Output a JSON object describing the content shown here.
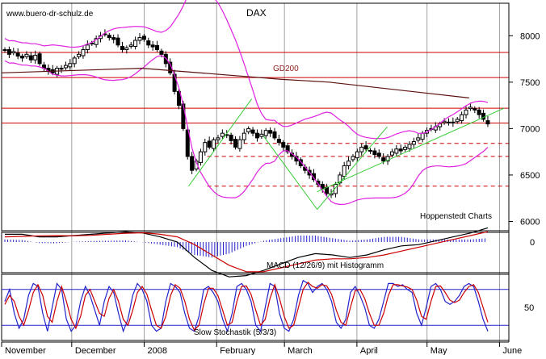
{
  "watermark": "www.buero-dr-schulz.de",
  "colors": {
    "background": "#ffffff",
    "price": "#000000",
    "bollinger": "#e020e0",
    "resistance": "#cc0000",
    "gd200": "#5a1010",
    "channel": "#33cc33",
    "vgrid": "#a0a0a0",
    "macd_line": "#000000",
    "signal_line": "#cc0000",
    "histogram": "#2222cc",
    "stoch_k": "#2222cc",
    "stoch_d": "#cc0000",
    "stoch_levels": "#2222cc"
  },
  "chart_data": [
    {
      "type": "candlestick",
      "title": "DAX",
      "annotations": [
        "GD200",
        "Hoppenstedt Charts"
      ],
      "y_ticks": [
        8000,
        7500,
        7000,
        6500,
        6000
      ],
      "ylim": [
        5900,
        8350
      ],
      "x_ticks": [
        "November",
        "December",
        "2008",
        "February",
        "March",
        "April",
        "May",
        "June"
      ],
      "x_tick_days": [
        0,
        30,
        61,
        92,
        121,
        152,
        182,
        213
      ],
      "xlim": [
        0,
        217
      ],
      "close": [
        7850,
        7800,
        7830,
        7780,
        7760,
        7800,
        7740,
        7790,
        7700,
        7650,
        7620,
        7600,
        7650,
        7640,
        7680,
        7700,
        7760,
        7800,
        7850,
        7900,
        7920,
        7970,
        8000,
        8020,
        7980,
        7960,
        7900,
        7850,
        7870,
        7900,
        7950,
        7980,
        7960,
        7900,
        7880,
        7850,
        7800,
        7700,
        7600,
        7400,
        7250,
        7000,
        6700,
        6550,
        6650,
        6750,
        6850,
        6800,
        6880,
        6900,
        6950,
        6930,
        6870,
        6800,
        6880,
        6950,
        7000,
        6950,
        6900,
        6940,
        6980,
        6950,
        6900,
        6850,
        6800,
        6750,
        6700,
        6650,
        6600,
        6550,
        6500,
        6450,
        6400,
        6350,
        6300,
        6300,
        6400,
        6500,
        6600,
        6650,
        6700,
        6750,
        6800,
        6780,
        6760,
        6720,
        6700,
        6650,
        6700,
        6750,
        6780,
        6760,
        6800,
        6830,
        6860,
        6900,
        6950,
        6980,
        7000,
        7020,
        7050,
        7080,
        7070,
        7060,
        7100,
        7150,
        7200,
        7230,
        7200,
        7150,
        7100,
        7050
      ],
      "resistance_solid": [
        7820,
        7550,
        7220,
        7060
      ],
      "support_dashed": [
        6840,
        6700,
        6380
      ],
      "gd200": {
        "x": [
          0,
          60,
          120,
          140,
          200
        ],
        "y": [
          7600,
          7650,
          7530,
          7500,
          7330
        ]
      },
      "channels": [
        {
          "x": [
            80,
            107
          ],
          "y": [
            6380,
            7320
          ]
        },
        {
          "x": [
            112,
            135
          ],
          "y": [
            6920,
            6130
          ]
        },
        {
          "x": [
            135,
            165
          ],
          "y": [
            6130,
            7020
          ]
        },
        {
          "x": [
            135,
            215
          ],
          "y": [
            6320,
            7220
          ]
        }
      ]
    },
    {
      "type": "line",
      "title": "MACD (12/26/9) mit Histogramm",
      "y_ticks": [
        0
      ],
      "macd": [
        0.3,
        0.3,
        0.2,
        0.2,
        0.25,
        0.3,
        0.35,
        0.4,
        0.35,
        0.2,
        0,
        -0.6,
        -1.1,
        -1.35,
        -1.3,
        -1.1,
        -0.85,
        -0.6,
        -0.45,
        -0.5,
        -0.6,
        -0.5,
        -0.3,
        -0.15,
        -0.1,
        0.05,
        0.2,
        0.35,
        0.55
      ],
      "signal": [
        0.2,
        0.22,
        0.24,
        0.25,
        0.24,
        0.26,
        0.3,
        0.34,
        0.36,
        0.3,
        0.2,
        -0.1,
        -0.5,
        -0.9,
        -1.15,
        -1.15,
        -1.0,
        -0.85,
        -0.7,
        -0.65,
        -0.65,
        -0.6,
        -0.5,
        -0.35,
        -0.2,
        -0.05,
        0.1,
        0.25,
        0.4
      ],
      "histogram": [
        0.1,
        0.08,
        -0.04,
        -0.05,
        0.01,
        0.04,
        0.05,
        0.06,
        -0.01,
        -0.1,
        -0.2,
        -0.5,
        -0.6,
        -0.45,
        -0.15,
        0.05,
        0.15,
        0.25,
        0.25,
        0.15,
        0.05,
        0.1,
        0.2,
        0.2,
        0.1,
        0.1,
        0.1,
        0.1,
        0.15
      ]
    },
    {
      "type": "line",
      "title": "Slow Stochastik (5/3/3)",
      "y_ticks": [
        50
      ],
      "ylim": [
        0,
        100
      ],
      "levels": [
        80,
        20
      ],
      "k": [
        60,
        80,
        40,
        15,
        30,
        70,
        90,
        85,
        40,
        10,
        50,
        90,
        80,
        30,
        10,
        20,
        60,
        85,
        70,
        45,
        20,
        60,
        85,
        75,
        40,
        10,
        30,
        70,
        90,
        80,
        60,
        20,
        10,
        15,
        60,
        90,
        85,
        75,
        40,
        15,
        10,
        35,
        80,
        85,
        75,
        60,
        30,
        10,
        40,
        85,
        90,
        80,
        60,
        20,
        10,
        50,
        90,
        85,
        40,
        15,
        10,
        30,
        70,
        95,
        90,
        75,
        85,
        90,
        80,
        60,
        25,
        15,
        30,
        75,
        85,
        70,
        50,
        20,
        15,
        30,
        60,
        90,
        90,
        85,
        88,
        80,
        75,
        40,
        20,
        50,
        85,
        90,
        80,
        60,
        55,
        60,
        70,
        85,
        90,
        85,
        60,
        30,
        10
      ],
      "d": [
        55,
        70,
        60,
        35,
        20,
        45,
        75,
        88,
        70,
        35,
        25,
        60,
        85,
        60,
        30,
        15,
        35,
        70,
        80,
        60,
        40,
        35,
        65,
        80,
        60,
        30,
        20,
        45,
        75,
        85,
        72,
        45,
        20,
        15,
        35,
        70,
        88,
        82,
        60,
        30,
        12,
        20,
        55,
        82,
        82,
        70,
        45,
        20,
        25,
        60,
        85,
        86,
        72,
        45,
        20,
        30,
        65,
        88,
        65,
        35,
        15,
        20,
        50,
        80,
        92,
        85,
        82,
        88,
        86,
        72,
        45,
        25,
        20,
        50,
        78,
        80,
        65,
        40,
        20,
        20,
        40,
        70,
        88,
        88,
        86,
        84,
        80,
        62,
        35,
        30,
        60,
        85,
        86,
        75,
        62,
        58,
        62,
        75,
        85,
        88,
        75,
        50,
        25
      ]
    }
  ]
}
